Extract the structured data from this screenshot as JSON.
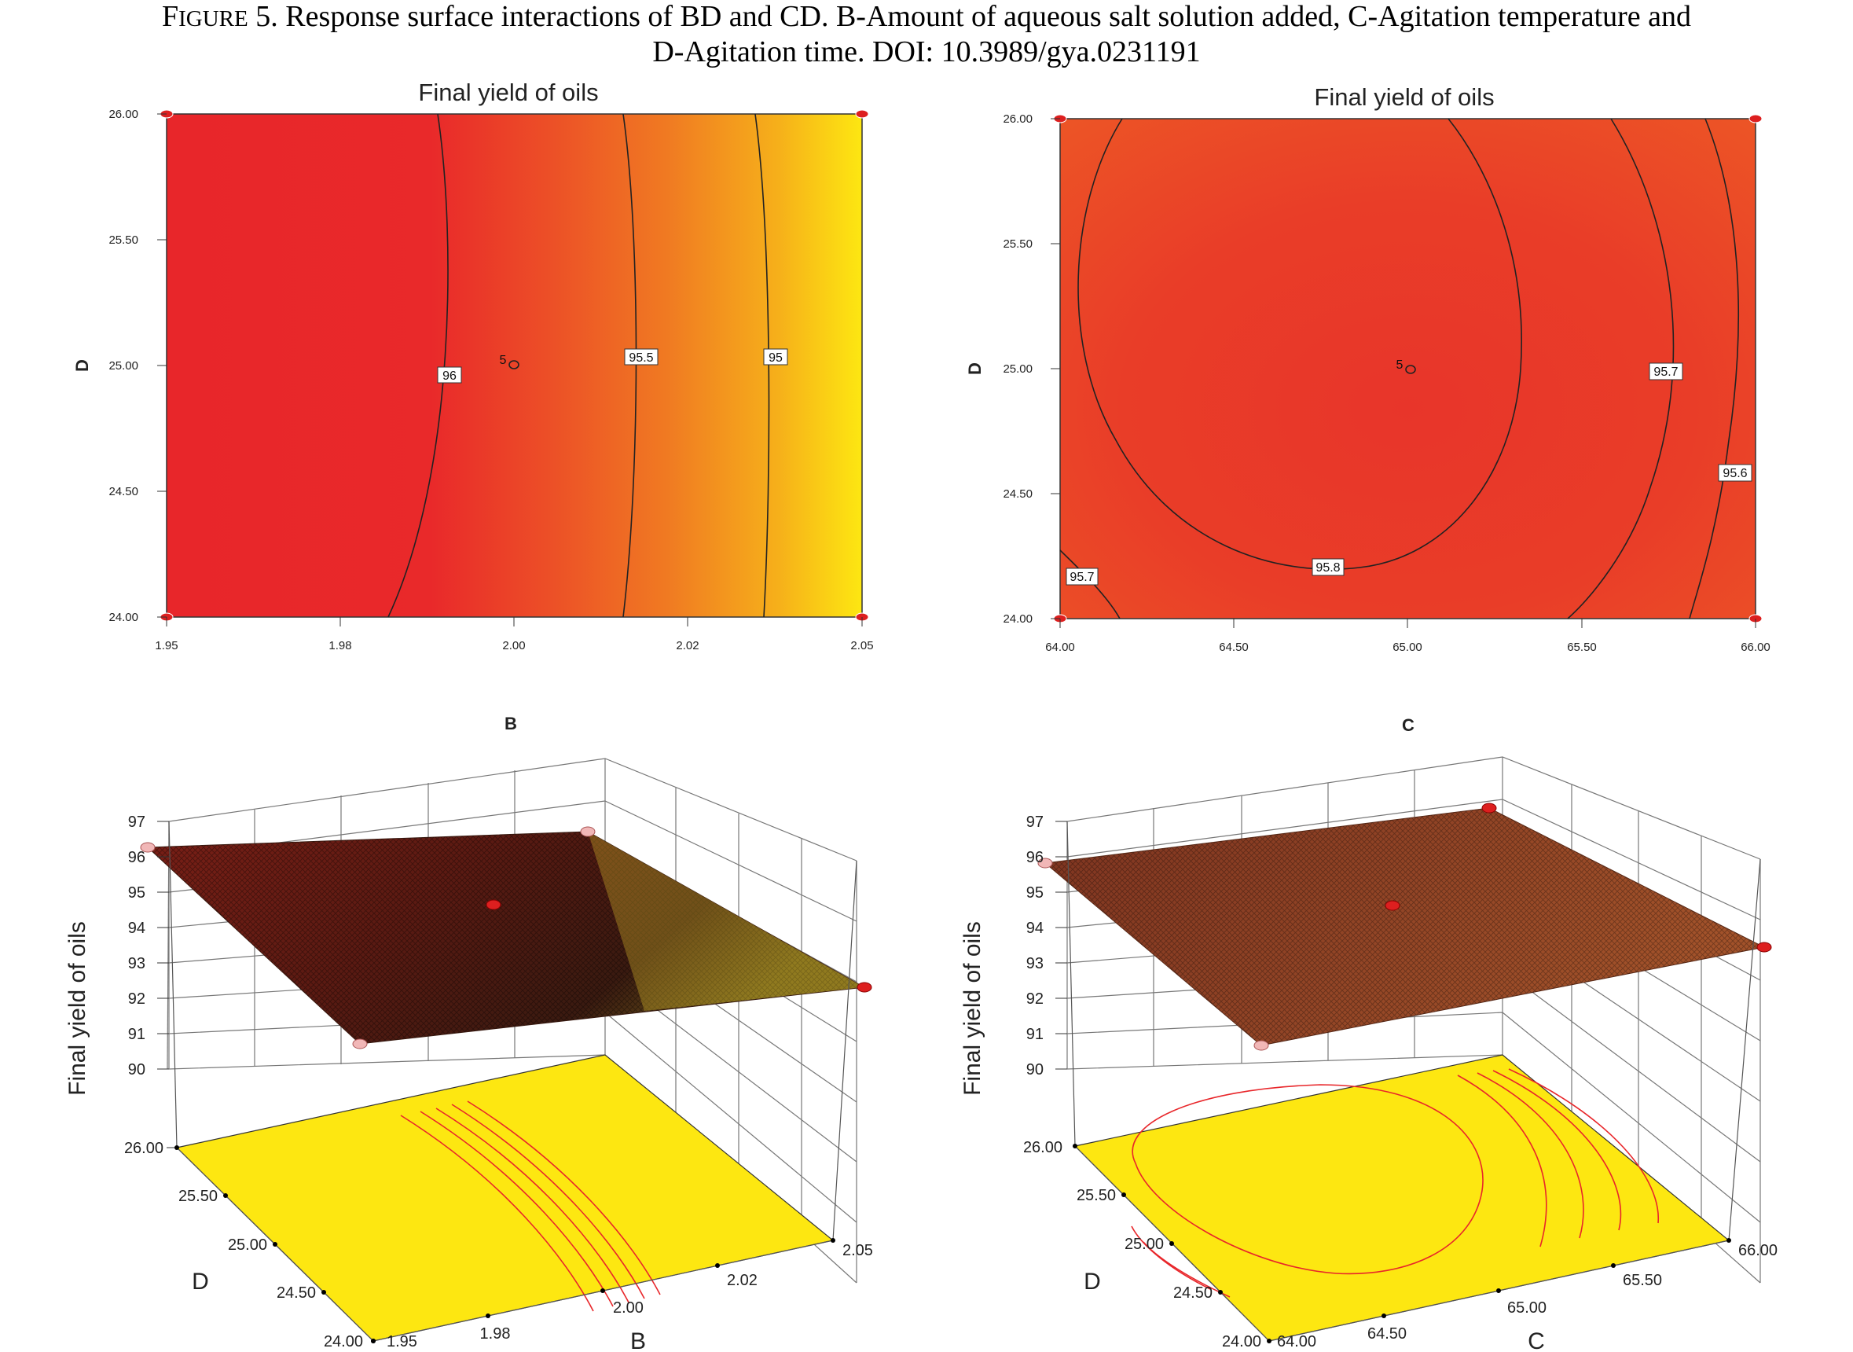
{
  "caption": {
    "label_first": "F",
    "label_rest": "IGURE",
    "number": "5.",
    "line1_rest": "Response surface interactions of BD and CD. B-Amount of aqueous salt solution added, C-Agitation temperature and",
    "line2": "D-Agitation time. DOI: 10.3989/gya.0231191"
  },
  "colors": {
    "red": "#e8262a",
    "orange": "#f07a22",
    "yellow": "#fde711",
    "surface_dark": "#5a1a12",
    "marker": "#dd1f1f",
    "marker_pink": "#f1b7b7"
  },
  "chart_data": [
    {
      "type": "contour",
      "title": "Final yield of oils",
      "xlabel": "B",
      "ylabel": "D",
      "xlim": [
        1.95,
        2.05
      ],
      "ylim": [
        24.0,
        26.0
      ],
      "x_ticks": [
        "1.95",
        "1.98",
        "2.00",
        "2.02",
        "2.05"
      ],
      "y_ticks": [
        "24.00",
        "24.50",
        "25.00",
        "25.50",
        "26.00"
      ],
      "contours": [
        {
          "level": 96,
          "label": "96",
          "x_at_mid": 1.9925
        },
        {
          "level": 95.5,
          "label": "95.5",
          "x_at_mid": 2.0155
        },
        {
          "level": 95,
          "label": "95",
          "x_at_mid": 2.0335
        }
      ],
      "center_point": {
        "x": 2.0,
        "y": 25.0,
        "label": "5"
      },
      "design_points": [
        [
          1.95,
          24.0
        ],
        [
          1.95,
          26.0
        ],
        [
          2.05,
          24.0
        ],
        [
          2.05,
          26.0
        ]
      ]
    },
    {
      "type": "contour",
      "title": "Final yield of oils",
      "xlabel": "C",
      "ylabel": "D",
      "xlim": [
        64.0,
        66.0
      ],
      "ylim": [
        24.0,
        26.0
      ],
      "x_ticks": [
        "64.00",
        "64.50",
        "65.00",
        "65.50",
        "66.00"
      ],
      "y_ticks": [
        "24.00",
        "24.50",
        "25.00",
        "25.50",
        "26.00"
      ],
      "contours": [
        {
          "level": 95.8,
          "label": "95.8"
        },
        {
          "level": 95.7,
          "label": "95.7"
        },
        {
          "level": 95.7,
          "label": "95.7"
        },
        {
          "level": 95.6,
          "label": "95.6"
        }
      ],
      "center_point": {
        "x": 65.0,
        "y": 25.0,
        "label": "5"
      },
      "design_points": [
        [
          64.0,
          24.0
        ],
        [
          64.0,
          26.0
        ],
        [
          66.0,
          24.0
        ],
        [
          66.0,
          26.0
        ]
      ]
    },
    {
      "type": "surface3d",
      "zlabel": "Final yield of oils",
      "xlabel": "B",
      "ylabel": "D",
      "zlim": [
        90,
        97
      ],
      "z_ticks": [
        "90",
        "91",
        "92",
        "93",
        "94",
        "95",
        "96",
        "97"
      ],
      "x_ticks": [
        "1.95",
        "1.98",
        "2.00",
        "2.02",
        "2.05"
      ],
      "y_ticks": [
        "24.00",
        "24.50",
        "25.00",
        "25.50",
        "26.00"
      ],
      "corner_values": {
        "B1.95_D24": 96.0,
        "B1.95_D26": 96.0,
        "B2.05_D24": 94.2,
        "B2.05_D26": 94.2
      },
      "center_value": 95.9
    },
    {
      "type": "surface3d",
      "zlabel": "Final yield of oils",
      "xlabel": "C",
      "ylabel": "D",
      "zlim": [
        90,
        97
      ],
      "z_ticks": [
        "90",
        "91",
        "92",
        "93",
        "94",
        "95",
        "96",
        "97"
      ],
      "x_ticks": [
        "64.00",
        "64.50",
        "65.00",
        "65.50",
        "66.00"
      ],
      "y_ticks": [
        "24.00",
        "24.50",
        "25.00",
        "25.50",
        "26.00"
      ],
      "corner_values": {
        "C64_D24": 95.7,
        "C64_D26": 95.7,
        "C66_D24": 95.6,
        "C66_D26": 95.6
      },
      "center_value": 95.8
    }
  ]
}
